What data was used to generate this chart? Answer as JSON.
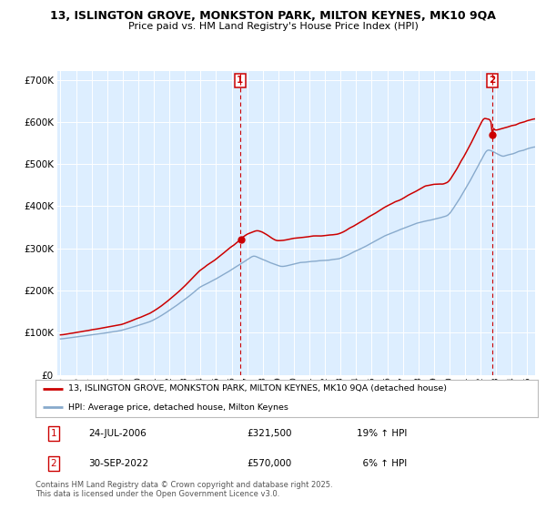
{
  "title_line1": "13, ISLINGTON GROVE, MONKSTON PARK, MILTON KEYNES, MK10 9QA",
  "title_line2": "Price paid vs. HM Land Registry's House Price Index (HPI)",
  "bg_color": "#ddeeff",
  "red_color": "#cc0000",
  "blue_color": "#88aacc",
  "grid_color": "#ffffff",
  "ann1_x": 2006.55,
  "ann1_label": "1",
  "ann2_x": 2022.75,
  "ann2_label": "2",
  "legend_entry1": "13, ISLINGTON GROVE, MONKSTON PARK, MILTON KEYNES, MK10 9QA (detached house)",
  "legend_entry2": "HPI: Average price, detached house, Milton Keynes",
  "footer": "Contains HM Land Registry data © Crown copyright and database right 2025.\nThis data is licensed under the Open Government Licence v3.0.",
  "ylim": [
    0,
    720000
  ],
  "xlim_start": 1994.8,
  "xlim_end": 2025.5
}
